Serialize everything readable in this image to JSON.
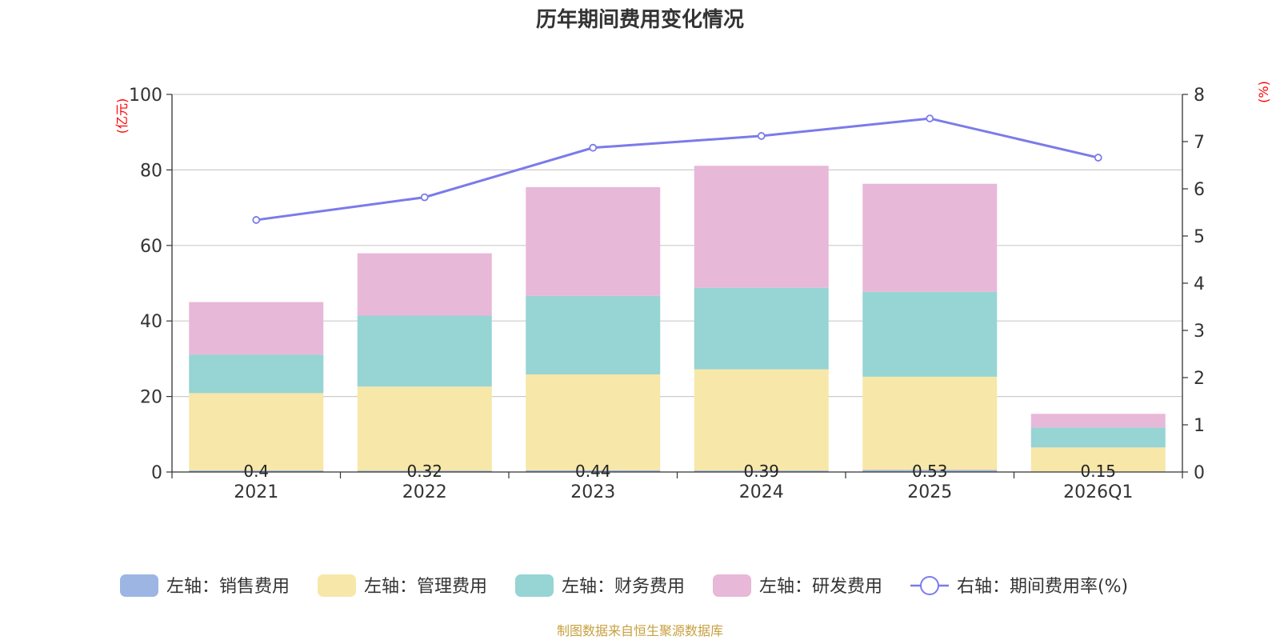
{
  "chart_data": {
    "type": "bar",
    "stacked": true,
    "title": "历年期间费用变化情况",
    "categories": [
      "2021",
      "2022",
      "2023",
      "2024",
      "2025",
      "2026Q1"
    ],
    "y_left": {
      "unit": "(亿元)",
      "ylim": [
        0,
        100
      ],
      "ticks": [
        0,
        20,
        40,
        60,
        80,
        100
      ]
    },
    "y_right": {
      "unit": "(%)",
      "ylim": [
        0,
        8
      ],
      "ticks": [
        0,
        1,
        2,
        3,
        4,
        5,
        6,
        7,
        8
      ]
    },
    "series": [
      {
        "name": "左轴：销售费用",
        "axis": "left",
        "color": "#9db5e2",
        "values": [
          0.4,
          0.32,
          0.44,
          0.39,
          0.53,
          0.15
        ]
      },
      {
        "name": "左轴：管理费用",
        "axis": "left",
        "color": "#f7e7a8",
        "values": [
          20.5,
          22.3,
          25.4,
          26.8,
          24.7,
          6.35
        ]
      },
      {
        "name": "左轴：财务费用",
        "axis": "left",
        "color": "#97d4d4",
        "values": [
          10.2,
          18.8,
          20.8,
          21.6,
          22.5,
          5.3
        ]
      },
      {
        "name": "左轴：研发费用",
        "axis": "left",
        "color": "#e8b8d8",
        "values": [
          13.9,
          16.5,
          28.8,
          32.3,
          28.6,
          3.6
        ]
      },
      {
        "name": "右轴：期间费用率(%)",
        "axis": "right",
        "type": "line",
        "color": "#7b7bea",
        "values": [
          5.34,
          5.82,
          6.87,
          7.12,
          7.49,
          6.66
        ]
      }
    ],
    "data_labels": [
      "0.4",
      "0.32",
      "0.44",
      "0.39",
      "0.53",
      "0.15"
    ],
    "grid": true,
    "legend_position": "bottom"
  },
  "source_text": "制图数据来自恒生聚源数据库"
}
